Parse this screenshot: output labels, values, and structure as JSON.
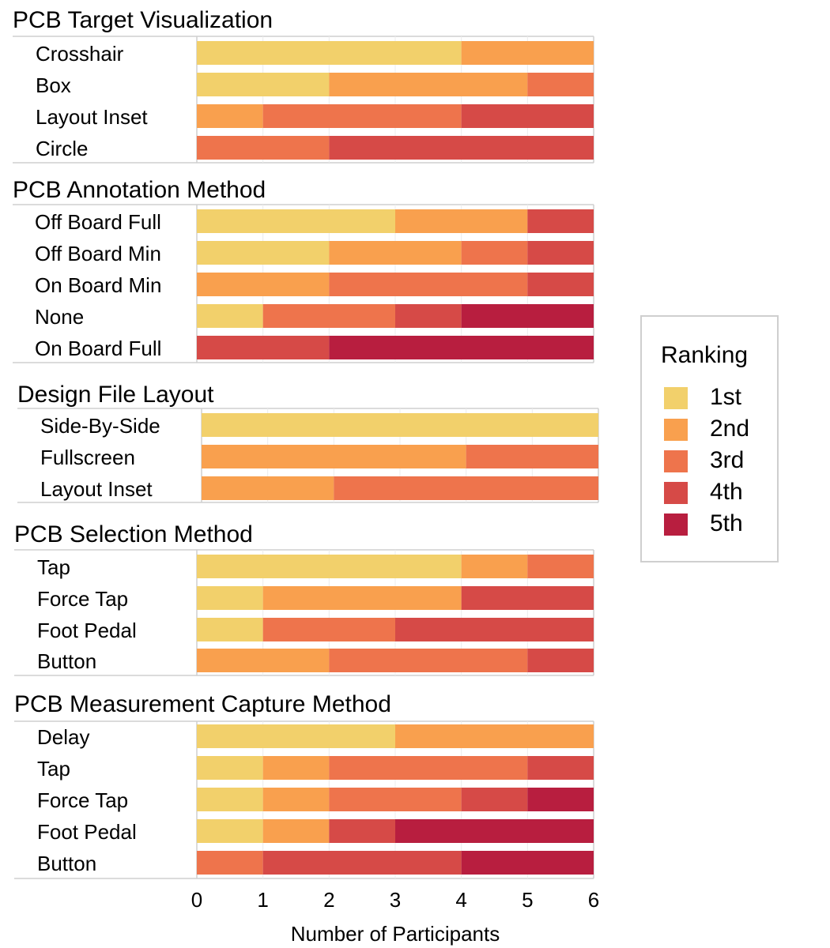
{
  "chart_data": {
    "type": "bar",
    "orientation": "horizontal",
    "stacked": true,
    "xlabel": "Number of Participants",
    "xlim": [
      0,
      6
    ],
    "xticks": [
      "0",
      "1",
      "2",
      "3",
      "4",
      "5",
      "6"
    ],
    "grid": true,
    "legend": {
      "title": "Ranking",
      "placement": "right",
      "entries": [
        {
          "label": "1st",
          "color": "#f2d06b"
        },
        {
          "label": "2nd",
          "color": "#f9a04e"
        },
        {
          "label": "3rd",
          "color": "#ee744c"
        },
        {
          "label": "4th",
          "color": "#d64a47"
        },
        {
          "label": "5th",
          "color": "#b81e3f"
        }
      ]
    },
    "panels": [
      {
        "title": "PCB Target Visualization",
        "categories": [
          "Crosshair",
          "Box",
          "Layout Inset",
          "Circle"
        ],
        "rankings": [
          [
            4,
            2,
            0,
            0,
            0
          ],
          [
            2,
            3,
            1,
            0,
            0
          ],
          [
            0,
            1,
            3,
            2,
            0
          ],
          [
            0,
            0,
            2,
            4,
            0
          ]
        ]
      },
      {
        "title": "PCB Annotation Method",
        "categories": [
          "Off Board Full",
          "Off Board Min",
          "On Board Min",
          "None",
          "On Board Full"
        ],
        "rankings": [
          [
            3,
            2,
            0,
            1,
            0
          ],
          [
            2,
            2,
            1,
            1,
            0
          ],
          [
            0,
            2,
            3,
            1,
            0
          ],
          [
            1,
            0,
            2,
            1,
            2
          ],
          [
            0,
            0,
            0,
            2,
            4
          ]
        ]
      },
      {
        "title": "Design File Layout",
        "categories": [
          "Side-By-Side",
          "Fullscreen",
          "Layout Inset"
        ],
        "rankings": [
          [
            6,
            0,
            0,
            0,
            0
          ],
          [
            0,
            4,
            2,
            0,
            0
          ],
          [
            0,
            2,
            4,
            0,
            0
          ]
        ]
      },
      {
        "title": "PCB Selection Method",
        "categories": [
          "Tap",
          "Force Tap",
          "Foot Pedal",
          "Button"
        ],
        "rankings": [
          [
            4,
            1,
            1,
            0,
            0
          ],
          [
            1,
            3,
            0,
            2,
            0
          ],
          [
            1,
            0,
            2,
            3,
            0
          ],
          [
            0,
            2,
            3,
            1,
            0
          ]
        ]
      },
      {
        "title": "PCB Measurement Capture Method",
        "categories": [
          "Delay",
          "Tap",
          "Force Tap",
          "Foot Pedal",
          "Button"
        ],
        "rankings": [
          [
            3,
            3,
            0,
            0,
            0
          ],
          [
            1,
            1,
            3,
            1,
            0
          ],
          [
            1,
            1,
            2,
            1,
            1
          ],
          [
            1,
            1,
            0,
            1,
            3
          ],
          [
            0,
            0,
            1,
            3,
            2
          ]
        ]
      }
    ]
  }
}
